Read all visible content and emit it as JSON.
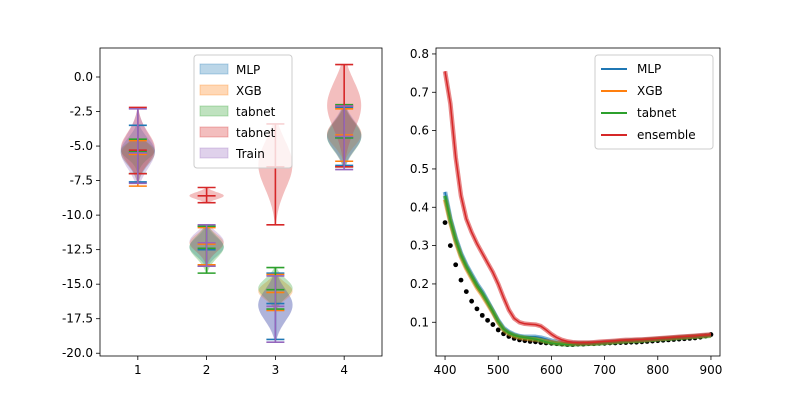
{
  "chart_data": [
    {
      "type": "violin",
      "positions": [
        1,
        2,
        3,
        4
      ],
      "xticks": [
        "1",
        "2",
        "3",
        "4"
      ],
      "xlim": [
        0.45,
        4.55
      ],
      "ylim": [
        -20.2,
        2.1
      ],
      "yticks": [
        "0.0",
        "-2.5",
        "-5.0",
        "-7.5",
        "-10.0",
        "-12.5",
        "-15.0",
        "-17.5",
        "-20.0"
      ],
      "legend": {
        "placement": "upper-center"
      },
      "series": [
        {
          "name": "MLP",
          "color": "#1f77b4",
          "groups": [
            {
              "min": -7.6,
              "mean": -5.5,
              "max": -3.5,
              "median": -5.4
            },
            {
              "min": -13.7,
              "mean": -12.5,
              "max": -10.8,
              "median": -12.3
            },
            {
              "min": -19.0,
              "mean": -16.4,
              "max": -14.2,
              "median": -16.5
            },
            {
              "min": -6.4,
              "mean": -4.4,
              "max": -2.2,
              "median": -4.3
            }
          ]
        },
        {
          "name": "XGB",
          "color": "#ff7f0e",
          "groups": [
            {
              "min": -7.9,
              "mean": -5.6,
              "max": -4.6,
              "median": -5.5
            },
            {
              "min": -13.6,
              "mean": -12.1,
              "max": -10.9,
              "median": -12.0
            },
            {
              "min": -16.9,
              "mean": -15.6,
              "max": -14.3,
              "median": -15.5
            },
            {
              "min": -6.1,
              "mean": -4.2,
              "max": -2.3,
              "median": -4.1
            }
          ]
        },
        {
          "name": "tabnet",
          "color": "#2ca02c",
          "groups": [
            {
              "min": -7.0,
              "mean": -5.4,
              "max": -4.5,
              "median": -5.3
            },
            {
              "min": -14.2,
              "mean": -12.4,
              "max": -10.8,
              "median": -12.3
            },
            {
              "min": -16.8,
              "mean": -15.4,
              "max": -13.8,
              "median": -15.3
            },
            {
              "min": -6.5,
              "mean": -4.4,
              "max": -2.0,
              "median": -4.3
            }
          ]
        },
        {
          "name": "tabnet",
          "color": "#d62728",
          "groups": [
            {
              "min": -7.0,
              "mean": -5.3,
              "max": -2.2,
              "median": -5.2
            },
            {
              "min": -9.1,
              "mean": -8.6,
              "max": -8.0,
              "median": -8.6
            },
            {
              "min": -10.7,
              "mean": -6.5,
              "max": -3.4,
              "median": -6.3
            },
            {
              "min": -6.5,
              "mean": -2.1,
              "max": 0.9,
              "median": -2.0
            }
          ]
        },
        {
          "name": "Train",
          "color": "#9467bd",
          "groups": [
            {
              "min": -7.7,
              "mean": -5.5,
              "max": -2.3,
              "median": -5.4
            },
            {
              "min": -13.7,
              "mean": -12.0,
              "max": -10.7,
              "median": -11.9
            },
            {
              "min": -19.2,
              "mean": -16.6,
              "max": -14.4,
              "median": -16.5
            },
            {
              "min": -6.7,
              "mean": -4.3,
              "max": -2.1,
              "median": -4.2
            }
          ]
        }
      ]
    },
    {
      "type": "line",
      "xlim": [
        383,
        917
      ],
      "ylim": [
        0.012,
        0.8155
      ],
      "xticks": [
        "400",
        "500",
        "600",
        "700",
        "800",
        "900"
      ],
      "yticks": [
        "0.1",
        "0.2",
        "0.3",
        "0.4",
        "0.5",
        "0.6",
        "0.7",
        "0.8"
      ],
      "legend": {
        "placement": "upper-right"
      },
      "x": [
        400,
        410,
        420,
        430,
        440,
        450,
        460,
        470,
        480,
        490,
        500,
        510,
        520,
        530,
        540,
        550,
        560,
        570,
        580,
        590,
        600,
        610,
        620,
        630,
        640,
        650,
        660,
        670,
        680,
        690,
        700,
        710,
        720,
        730,
        740,
        750,
        760,
        770,
        780,
        790,
        800,
        810,
        820,
        830,
        840,
        850,
        860,
        870,
        880,
        890,
        900
      ],
      "series": [
        {
          "name": "MLP",
          "color": "#1f77b4",
          "values": [
            0.44,
            0.37,
            0.32,
            0.28,
            0.25,
            0.225,
            0.2,
            0.18,
            0.155,
            0.13,
            0.105,
            0.085,
            0.075,
            0.068,
            0.064,
            0.062,
            0.062,
            0.062,
            0.06,
            0.056,
            0.052,
            0.049,
            0.047,
            0.046,
            0.046,
            0.046,
            0.046,
            0.046,
            0.046,
            0.047,
            0.048,
            0.049,
            0.05,
            0.051,
            0.052,
            0.053,
            0.053,
            0.054,
            0.055,
            0.056,
            0.057,
            0.058,
            0.059,
            0.06,
            0.061,
            0.062,
            0.063,
            0.064,
            0.065,
            0.066,
            0.067
          ]
        },
        {
          "name": "XGB",
          "color": "#ff7f0e",
          "values": [
            0.42,
            0.36,
            0.31,
            0.27,
            0.24,
            0.215,
            0.19,
            0.17,
            0.148,
            0.125,
            0.1,
            0.08,
            0.07,
            0.064,
            0.06,
            0.058,
            0.056,
            0.055,
            0.053,
            0.05,
            0.048,
            0.046,
            0.045,
            0.044,
            0.044,
            0.044,
            0.045,
            0.045,
            0.045,
            0.046,
            0.047,
            0.048,
            0.049,
            0.05,
            0.051,
            0.052,
            0.052,
            0.053,
            0.054,
            0.055,
            0.056,
            0.057,
            0.058,
            0.059,
            0.06,
            0.061,
            0.062,
            0.063,
            0.064,
            0.065,
            0.066
          ]
        },
        {
          "name": "tabnet",
          "color": "#2ca02c",
          "values": [
            0.43,
            0.365,
            0.315,
            0.275,
            0.245,
            0.22,
            0.195,
            0.175,
            0.152,
            0.128,
            0.102,
            0.082,
            0.072,
            0.066,
            0.062,
            0.06,
            0.058,
            0.056,
            0.053,
            0.049,
            0.046,
            0.044,
            0.043,
            0.042,
            0.042,
            0.043,
            0.043,
            0.044,
            0.044,
            0.045,
            0.046,
            0.047,
            0.048,
            0.049,
            0.05,
            0.051,
            0.051,
            0.052,
            0.053,
            0.054,
            0.055,
            0.056,
            0.057,
            0.058,
            0.059,
            0.06,
            0.061,
            0.062,
            0.063,
            0.064,
            0.065
          ]
        },
        {
          "name": "ensemble",
          "color": "#d62728",
          "values": [
            0.755,
            0.67,
            0.53,
            0.43,
            0.37,
            0.335,
            0.305,
            0.28,
            0.255,
            0.23,
            0.2,
            0.165,
            0.132,
            0.11,
            0.1,
            0.096,
            0.095,
            0.094,
            0.09,
            0.08,
            0.069,
            0.06,
            0.054,
            0.05,
            0.048,
            0.047,
            0.047,
            0.047,
            0.048,
            0.049,
            0.05,
            0.051,
            0.052,
            0.053,
            0.054,
            0.054,
            0.055,
            0.055,
            0.056,
            0.057,
            0.058,
            0.059,
            0.06,
            0.061,
            0.062,
            0.063,
            0.064,
            0.065,
            0.066,
            0.067,
            0.068
          ]
        },
        {
          "name": "",
          "color": "#000000",
          "style": "points",
          "values": [
            0.36,
            0.3,
            0.25,
            0.21,
            0.18,
            0.155,
            0.135,
            0.118,
            0.105,
            0.094,
            0.08,
            0.07,
            0.063,
            0.058,
            0.054,
            0.052,
            0.05,
            0.049,
            0.047,
            0.046,
            0.045,
            0.044,
            0.043,
            0.042,
            0.042,
            0.043,
            0.043,
            0.044,
            0.044,
            0.045,
            0.045,
            0.046,
            0.046,
            0.047,
            0.047,
            0.048,
            0.048,
            0.049,
            0.05,
            0.051,
            0.052,
            0.053,
            0.054,
            0.055,
            0.056,
            0.057,
            0.058,
            0.059,
            0.061,
            0.064,
            0.068
          ]
        }
      ]
    }
  ]
}
